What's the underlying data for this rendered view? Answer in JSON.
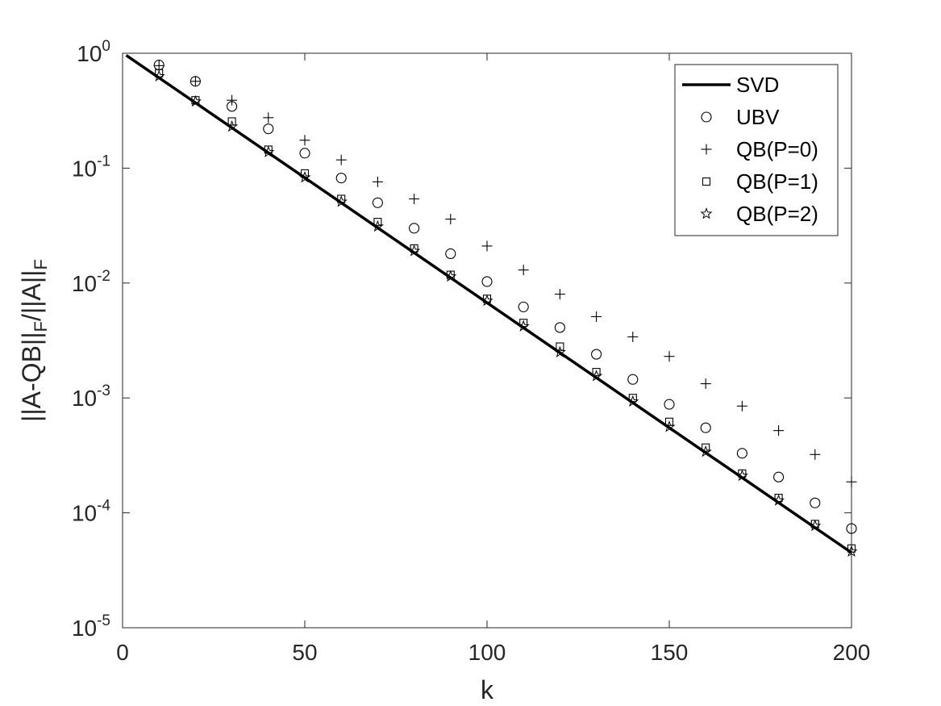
{
  "chart_data": {
    "type": "scatter",
    "xlabel": "k",
    "ylabel": "||A-QB||_F/||A||_F",
    "xlim": [
      0,
      200
    ],
    "ylim_log10": [
      -5,
      0
    ],
    "yscale": "log",
    "grid": false,
    "legend_position": "top-right",
    "x_ticks": [
      0,
      50,
      100,
      150,
      200
    ],
    "x_tick_labels": [
      "0",
      "50",
      "100",
      "150",
      "200"
    ],
    "y_ticks_exponents": [
      0,
      -1,
      -2,
      -3,
      -4,
      -5
    ],
    "y_tick_base": "10",
    "series": [
      {
        "name": "SVD",
        "marker": "line",
        "x": [
          1,
          200
        ],
        "y": [
          0.96,
          4.5e-05
        ]
      },
      {
        "name": "UBV",
        "marker": "circle",
        "x": [
          10,
          20,
          30,
          40,
          50,
          60,
          70,
          80,
          90,
          100,
          110,
          120,
          130,
          140,
          150,
          160,
          170,
          180,
          190,
          200
        ],
        "y": [
          0.79,
          0.57,
          0.345,
          0.22,
          0.135,
          0.082,
          0.05,
          0.03,
          0.018,
          0.0103,
          0.0062,
          0.0041,
          0.0024,
          0.00145,
          0.00088,
          0.00055,
          0.00033,
          0.000205,
          0.000122,
          7.3e-05
        ]
      },
      {
        "name": "QB(P=0)",
        "marker": "plus",
        "x": [
          10,
          20,
          30,
          40,
          50,
          60,
          70,
          80,
          90,
          100,
          110,
          120,
          130,
          140,
          150,
          160,
          170,
          180,
          190,
          200
        ],
        "y": [
          0.78,
          0.57,
          0.39,
          0.275,
          0.175,
          0.118,
          0.076,
          0.054,
          0.036,
          0.021,
          0.013,
          0.008,
          0.0051,
          0.0034,
          0.0023,
          0.00133,
          0.00085,
          0.00052,
          0.000322,
          0.000186
        ]
      },
      {
        "name": "QB(P=1)",
        "marker": "square",
        "x": [
          10,
          20,
          30,
          40,
          50,
          60,
          70,
          80,
          90,
          100,
          110,
          120,
          130,
          140,
          150,
          160,
          170,
          180,
          190,
          200
        ],
        "y": [
          0.67,
          0.39,
          0.255,
          0.145,
          0.09,
          0.054,
          0.034,
          0.02,
          0.0118,
          0.0073,
          0.0045,
          0.0028,
          0.00168,
          0.001,
          0.00062,
          0.00037,
          0.00022,
          0.000135,
          8e-05,
          4.9e-05
        ]
      },
      {
        "name": "QB(P=2)",
        "marker": "star",
        "x": [
          10,
          20,
          30,
          40,
          50,
          60,
          70,
          80,
          90,
          100,
          110,
          120,
          130,
          140,
          150,
          160,
          170,
          180,
          190,
          200
        ],
        "y": [
          0.63,
          0.38,
          0.23,
          0.138,
          0.083,
          0.051,
          0.031,
          0.019,
          0.0114,
          0.007,
          0.0042,
          0.0025,
          0.00155,
          0.00093,
          0.00056,
          0.00034,
          0.00021,
          0.000128,
          7.7e-05,
          4.6e-05
        ]
      }
    ]
  }
}
